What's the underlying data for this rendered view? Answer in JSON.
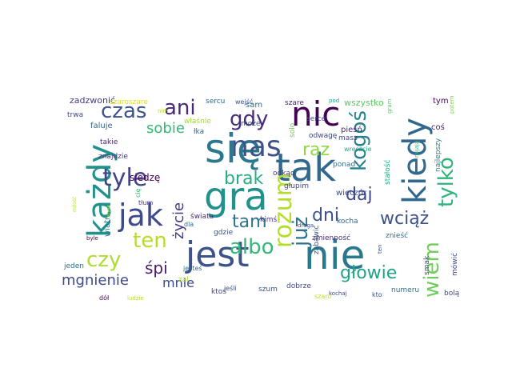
{
  "words": [
    {
      "text": "się",
      "color": "#2a788e"
    },
    {
      "text": "nie",
      "color": "#2a788e"
    },
    {
      "text": "gra",
      "color": "#21918c"
    },
    {
      "text": "tak",
      "color": "#31688e"
    },
    {
      "text": "jest",
      "color": "#3b528b"
    },
    {
      "text": "każdy",
      "color": "#21918c"
    },
    {
      "text": "kiedy",
      "color": "#31688e"
    },
    {
      "text": "nic",
      "color": "#440154"
    },
    {
      "text": "jak",
      "color": "#3e4a89"
    },
    {
      "text": "nas",
      "color": "#3b528b"
    },
    {
      "text": "rozum",
      "color": "#b5de2b"
    },
    {
      "text": "tyle",
      "color": "#414487"
    },
    {
      "text": "czas",
      "color": "#3b528b"
    },
    {
      "text": "ani",
      "color": "#482878"
    },
    {
      "text": "gdy",
      "color": "#472c7a"
    },
    {
      "text": "już",
      "color": "#2c728e"
    },
    {
      "text": "kogoś",
      "color": "#26828e"
    },
    {
      "text": "tylko",
      "color": "#2fb47c"
    },
    {
      "text": "ten",
      "color": "#b5de2b"
    },
    {
      "text": "albo",
      "color": "#35b779"
    },
    {
      "text": "czy",
      "color": "#addc30"
    },
    {
      "text": "wiem",
      "color": "#6ece58"
    },
    {
      "text": "brak",
      "color": "#28ae80"
    },
    {
      "text": "daj",
      "color": "#3e4989"
    },
    {
      "text": "dni",
      "color": "#3b528b"
    },
    {
      "text": "wciąż",
      "color": "#3b528b"
    },
    {
      "text": "tam",
      "color": "#2c728e"
    },
    {
      "text": "raz",
      "color": "#90d743"
    },
    {
      "text": "głowie",
      "color": "#20a386"
    },
    {
      "text": "mgnienie",
      "color": "#3e4a89"
    },
    {
      "text": "sobie",
      "color": "#35b779"
    },
    {
      "text": "śpi",
      "color": "#481a6c"
    },
    {
      "text": "życie",
      "color": "#443983"
    },
    {
      "text": "mnie",
      "color": "#3e4a89"
    },
    {
      "text": "siedzę",
      "color": "#440154"
    },
    {
      "text": "wszystko",
      "color": "#5ec962"
    },
    {
      "text": "zadzwonić",
      "color": "#433e85"
    },
    {
      "text": "szaroszare",
      "color": "#dde318"
    },
    {
      "text": "sercu",
      "color": "#31688e"
    },
    {
      "text": "wejść",
      "color": "#3b528b"
    },
    {
      "text": "szare",
      "color": "#482173"
    },
    {
      "text": "pod",
      "color": "#20a486"
    },
    {
      "text": "tym",
      "color": "#440154"
    },
    {
      "text": "trwa",
      "color": "#3e4a89"
    },
    {
      "text": "faluje",
      "color": "#31688e"
    },
    {
      "text": "nim",
      "color": "#b8de29"
    },
    {
      "text": "właśnie",
      "color": "#a0da39"
    },
    {
      "text": "sam",
      "color": "#2d708e"
    },
    {
      "text": "serce",
      "color": "#3e4989"
    },
    {
      "text": "może",
      "color": "#3b528b"
    },
    {
      "text": "łka",
      "color": "#31688e"
    },
    {
      "text": "takie",
      "color": "#481f70"
    },
    {
      "text": "znajdzie",
      "color": "#46337e"
    },
    {
      "text": "solo",
      "color": "#75d054"
    },
    {
      "text": "odwagę",
      "color": "#3f4788"
    },
    {
      "text": "pieśń",
      "color": "#482878"
    },
    {
      "text": "masz",
      "color": "#3e4a89"
    },
    {
      "text": "coś",
      "color": "#482475"
    },
    {
      "text": "najlepszy",
      "color": "#26828e"
    },
    {
      "text": "potem",
      "color": "#7ad151"
    },
    {
      "text": "wreszcie",
      "color": "#22a884"
    },
    {
      "text": "gram",
      "color": "#5ec962"
    },
    {
      "text": "mijają",
      "color": "#35b779"
    },
    {
      "text": "stałość",
      "color": "#29af7f"
    },
    {
      "text": "ponad",
      "color": "#2d708e"
    },
    {
      "text": "odkąd",
      "color": "#443a83"
    },
    {
      "text": "głupim",
      "color": "#414487"
    },
    {
      "text": "wieczór",
      "color": "#3e4a89"
    },
    {
      "text": "miłość",
      "color": "#b5de2b"
    },
    {
      "text": "znak",
      "color": "#90d743"
    },
    {
      "text": "wiatr",
      "color": "#287c8e"
    },
    {
      "text": "cię",
      "color": "#35b779"
    },
    {
      "text": "tłum",
      "color": "#46307e"
    },
    {
      "text": "świata",
      "color": "#482878"
    },
    {
      "text": "dla",
      "color": "#31688e"
    },
    {
      "text": "gdzie",
      "color": "#3b528b"
    },
    {
      "text": "kimś",
      "color": "#46327e"
    },
    {
      "text": "kocha",
      "color": "#31688e"
    },
    {
      "text": "droga",
      "color": "#3b528b"
    },
    {
      "text": "zmienność",
      "color": "#472d7b"
    },
    {
      "text": "znieść",
      "color": "#31688e"
    },
    {
      "text": "byle",
      "color": "#440154"
    },
    {
      "text": "jeden",
      "color": "#2c728e"
    },
    {
      "text": "zabawić",
      "color": "#3b528b"
    },
    {
      "text": "ten",
      "color": "#3b528b"
    },
    {
      "text": "smak",
      "color": "#3e4a89"
    },
    {
      "text": "mówić",
      "color": "#3e4a89"
    },
    {
      "text": "jesteś",
      "color": "#31688e"
    },
    {
      "text": "zal",
      "color": "#addc30"
    },
    {
      "text": "ktoś",
      "color": "#414487"
    },
    {
      "text": "jeśli",
      "color": "#3b528b"
    },
    {
      "text": "szum",
      "color": "#3b528b"
    },
    {
      "text": "dobrze",
      "color": "#3e4989"
    },
    {
      "text": "kochaj",
      "color": "#3f4788"
    },
    {
      "text": "szaro",
      "color": "#b5de2b"
    },
    {
      "text": "kto",
      "color": "#3b528b"
    },
    {
      "text": "numeru",
      "color": "#2c728e"
    },
    {
      "text": "bolą",
      "color": "#3e4a89"
    },
    {
      "text": "dół",
      "color": "#440154"
    },
    {
      "text": "ludzie",
      "color": "#b8de29"
    }
  ]
}
